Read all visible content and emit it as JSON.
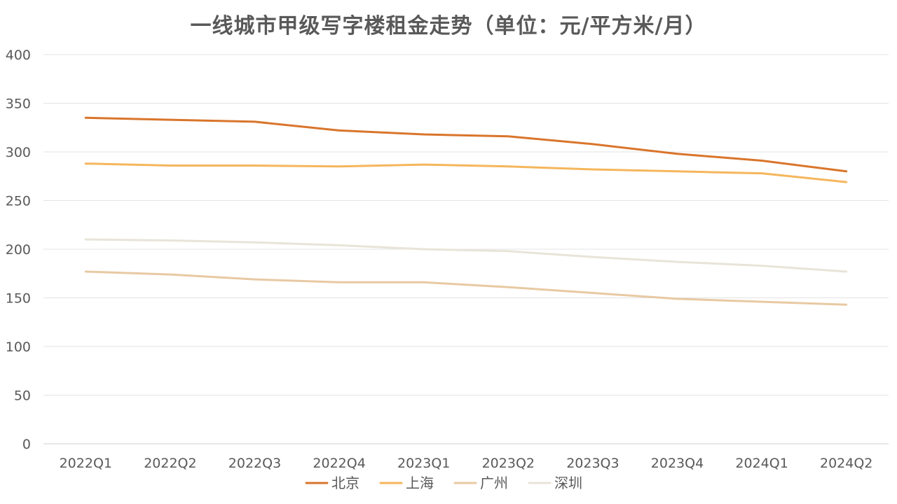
{
  "chart_data": {
    "type": "line",
    "title": "一线城市甲级写字楼租金走势（单位：元/平方米/月）",
    "categories": [
      "2022Q1",
      "2022Q2",
      "2022Q3",
      "2022Q4",
      "2023Q1",
      "2023Q2",
      "2023Q3",
      "2023Q4",
      "2024Q1",
      "2024Q2"
    ],
    "ylim": [
      0,
      400
    ],
    "yticks": [
      0,
      50,
      100,
      150,
      200,
      250,
      300,
      350,
      400
    ],
    "grid": true,
    "legend_position": "bottom",
    "series": [
      {
        "name": "北京",
        "color": "#D9752B",
        "values": [
          335,
          333,
          331,
          322,
          318,
          316,
          308,
          298,
          291,
          280
        ]
      },
      {
        "name": "上海",
        "color": "#F5B65C",
        "values": [
          288,
          286,
          286,
          285,
          287,
          285,
          282,
          280,
          278,
          269
        ]
      },
      {
        "name": "广州",
        "color": "#E8C9A3",
        "values": [
          177,
          174,
          169,
          166,
          166,
          161,
          155,
          149,
          146,
          143
        ]
      },
      {
        "name": "深圳",
        "color": "#E8E4D8",
        "values": [
          210,
          209,
          207,
          204,
          200,
          198,
          192,
          187,
          183,
          177
        ]
      }
    ]
  }
}
